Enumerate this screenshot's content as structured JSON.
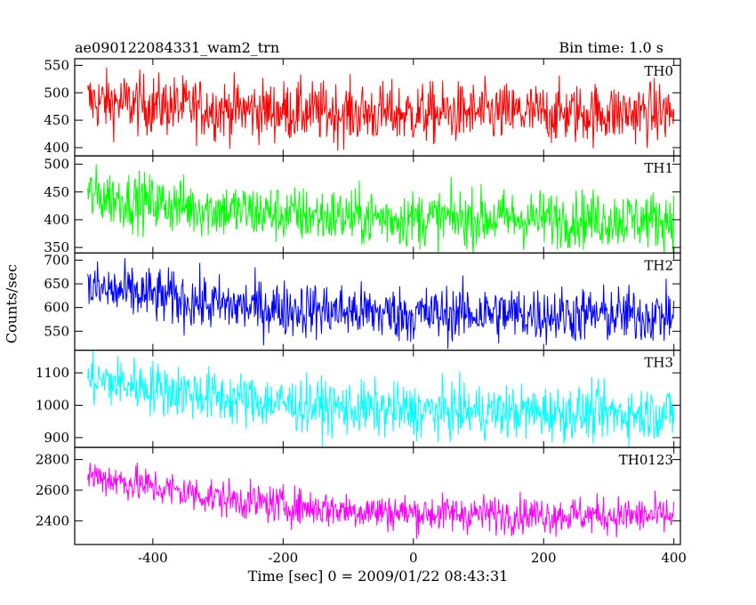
{
  "header": {
    "source": "ae090122084331_wam2_trn",
    "bin_time": "Bin time: 1.0 s"
  },
  "chart_data": {
    "type": "line",
    "xlabel": "Time [sec] 0 = 2009/01/22 08:43:31",
    "ylabel": "Counts/sec",
    "xlim": [
      -520,
      410
    ],
    "x_ticks": [
      -400,
      -200,
      0,
      200,
      400
    ],
    "x_start": -500,
    "x_end": 400,
    "panels": [
      {
        "name": "TH0",
        "color": "#ff0000",
        "ylim": [
          385,
          562
        ],
        "y_ticks": [
          400,
          450,
          500,
          550
        ],
        "trend": [
          [
            -500,
            485
          ],
          [
            -400,
            478
          ],
          [
            -300,
            470
          ],
          [
            -200,
            467
          ],
          [
            -100,
            463
          ],
          [
            0,
            462
          ],
          [
            100,
            463
          ],
          [
            200,
            462
          ],
          [
            300,
            463
          ],
          [
            400,
            464
          ]
        ],
        "noise": 28
      },
      {
        "name": "TH1",
        "color": "#00ff00",
        "ylim": [
          340,
          515
        ],
        "y_ticks": [
          350,
          400,
          450,
          500
        ],
        "trend": [
          [
            -500,
            445
          ],
          [
            -400,
            430
          ],
          [
            -300,
            418
          ],
          [
            -200,
            410
          ],
          [
            -100,
            405
          ],
          [
            0,
            402
          ],
          [
            100,
            402
          ],
          [
            200,
            402
          ],
          [
            300,
            401
          ],
          [
            400,
            400
          ]
        ],
        "noise": 26
      },
      {
        "name": "TH2",
        "color": "#0000ff",
        "ylim": [
          510,
          715
        ],
        "y_ticks": [
          550,
          600,
          650,
          700
        ],
        "trend": [
          [
            -500,
            640
          ],
          [
            -400,
            625
          ],
          [
            -300,
            605
          ],
          [
            -200,
            598
          ],
          [
            -100,
            592
          ],
          [
            0,
            585
          ],
          [
            100,
            588
          ],
          [
            200,
            585
          ],
          [
            300,
            584
          ],
          [
            400,
            583
          ]
        ],
        "noise": 30
      },
      {
        "name": "TH3",
        "color": "#00ffff",
        "ylim": [
          870,
          1170
        ],
        "y_ticks": [
          900,
          1000,
          1100
        ],
        "trend": [
          [
            -500,
            1080
          ],
          [
            -400,
            1055
          ],
          [
            -300,
            1025
          ],
          [
            -200,
            1005
          ],
          [
            -100,
            990
          ],
          [
            0,
            982
          ],
          [
            100,
            980
          ],
          [
            200,
            978
          ],
          [
            300,
            975
          ],
          [
            400,
            975
          ]
        ],
        "noise": 42
      },
      {
        "name": "TH0123",
        "color": "#ff00ff",
        "ylim": [
          2245,
          2880
        ],
        "y_ticks": [
          2400,
          2600,
          2800
        ],
        "trend": [
          [
            -500,
            2700
          ],
          [
            -400,
            2620
          ],
          [
            -300,
            2550
          ],
          [
            -200,
            2500
          ],
          [
            -100,
            2470
          ],
          [
            0,
            2450
          ],
          [
            100,
            2445
          ],
          [
            200,
            2440
          ],
          [
            300,
            2435
          ],
          [
            400,
            2430
          ]
        ],
        "noise": 62
      }
    ]
  }
}
